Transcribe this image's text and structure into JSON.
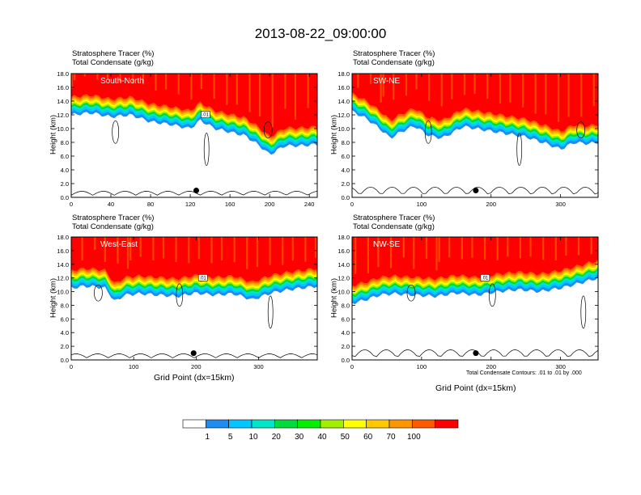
{
  "figure": {
    "title": "2013-08-22_09:00:00",
    "note": "Total Condensate Contours: .01 to .01 by .000",
    "xlabel": "Grid Point (dx=15km)"
  },
  "colorbar": {
    "levels": [
      "1",
      "5",
      "10",
      "20",
      "30",
      "40",
      "50",
      "60",
      "70",
      "100"
    ],
    "colors": [
      "#ffffff",
      "#1e8cf0",
      "#00c8ff",
      "#00e6c8",
      "#00dc3c",
      "#00f000",
      "#a0f000",
      "#ffff00",
      "#ffc800",
      "#ff9600",
      "#ff5a00",
      "#ff0000"
    ]
  },
  "colors": {
    "contour": "#000000",
    "marker": "#000000"
  },
  "chart_data": [
    {
      "id": "p1",
      "type": "heatmap",
      "title": "South-North",
      "line1": "Stratosphere Tracer   (%)",
      "line2": "Total Condensate   (g/kg)",
      "ylabel": "Height (km)",
      "xlabel": "",
      "xlim": [
        0,
        248
      ],
      "xticks": [
        0,
        40,
        80,
        120,
        160,
        200,
        240
      ],
      "ylim": [
        0,
        18
      ],
      "yticks": [
        0.0,
        2.0,
        4.0,
        6.0,
        8.0,
        10.0,
        12.0,
        14.0,
        16.0,
        18.0
      ],
      "tropopause_km": [
        [
          0,
          14.6
        ],
        [
          20,
          14.9
        ],
        [
          40,
          14.3
        ],
        [
          60,
          14.6
        ],
        [
          80,
          13.6
        ],
        [
          100,
          13.2
        ],
        [
          120,
          12.6
        ],
        [
          130,
          13.8
        ],
        [
          145,
          12.6
        ],
        [
          160,
          12.1
        ],
        [
          175,
          11.6
        ],
        [
          190,
          10.1
        ],
        [
          200,
          8.8
        ],
        [
          215,
          10.1
        ],
        [
          230,
          10.1
        ],
        [
          248,
          10.3
        ]
      ],
      "marker": [
        126,
        1.0
      ],
      "contour_label": ".01"
    },
    {
      "id": "p2",
      "type": "heatmap",
      "title": "SW-NE",
      "line1": "Stratosphere Tracer   (%)",
      "line2": "Total Condensate   (g/kg)",
      "ylabel": "Height (km)",
      "xlabel": "",
      "xlim": [
        0,
        354
      ],
      "xticks": [
        0,
        100,
        200,
        300
      ],
      "ylim": [
        0,
        18
      ],
      "yticks": [
        0.0,
        2.0,
        4.0,
        6.0,
        8.0,
        10.0,
        12.0,
        14.0,
        16.0,
        18.0
      ],
      "tropopause_km": [
        [
          0,
          15.1
        ],
        [
          20,
          14.1
        ],
        [
          40,
          12.6
        ],
        [
          55,
          11.2
        ],
        [
          70,
          12.1
        ],
        [
          90,
          13.0
        ],
        [
          110,
          11.6
        ],
        [
          130,
          11.2
        ],
        [
          160,
          12.9
        ],
        [
          190,
          12.4
        ],
        [
          220,
          11.9
        ],
        [
          250,
          11.4
        ],
        [
          280,
          10.4
        ],
        [
          300,
          9.6
        ],
        [
          320,
          10.6
        ],
        [
          340,
          10.4
        ],
        [
          354,
          10.6
        ]
      ],
      "marker": [
        178,
        1.0
      ],
      "contour_label": ""
    },
    {
      "id": "p3",
      "type": "heatmap",
      "title": "West-East",
      "line1": "Stratosphere Tracer   (%)",
      "line2": "Total Condensate   (g/kg)",
      "ylabel": "Height (km)",
      "xlabel": "Grid Point (dx=15km)",
      "xlim": [
        0,
        394
      ],
      "xticks": [
        0,
        100,
        200,
        300
      ],
      "ylim": [
        0,
        18
      ],
      "yticks": [
        0.0,
        2.0,
        4.0,
        6.0,
        8.0,
        10.0,
        12.0,
        14.0,
        16.0,
        18.0
      ],
      "tropopause_km": [
        [
          0,
          13.1
        ],
        [
          20,
          13.4
        ],
        [
          40,
          13.3
        ],
        [
          55,
          13.1
        ],
        [
          70,
          11.1
        ],
        [
          85,
          12.1
        ],
        [
          110,
          12.3
        ],
        [
          140,
          12.1
        ],
        [
          170,
          11.9
        ],
        [
          200,
          12.4
        ],
        [
          230,
          12.1
        ],
        [
          260,
          12.3
        ],
        [
          290,
          11.4
        ],
        [
          320,
          12.4
        ],
        [
          350,
          12.9
        ],
        [
          394,
          13.4
        ]
      ],
      "marker": [
        196,
        1.0
      ],
      "contour_label": ".01"
    },
    {
      "id": "p4",
      "type": "heatmap",
      "title": "NW-SE",
      "line1": "Stratosphere Tracer   (%)",
      "line2": "Total Condensate   (g/kg)",
      "ylabel": "Height (km)",
      "xlabel": "Grid Point (dx=15km)",
      "xlim": [
        0,
        354
      ],
      "xticks": [
        0,
        100,
        200,
        300
      ],
      "ylim": [
        0,
        18
      ],
      "yticks": [
        0.0,
        2.0,
        4.0,
        6.0,
        8.0,
        10.0,
        12.0,
        14.0,
        16.0,
        18.0
      ],
      "tropopause_km": [
        [
          0,
          10.9
        ],
        [
          20,
          11.4
        ],
        [
          40,
          12.1
        ],
        [
          60,
          12.3
        ],
        [
          90,
          12.1
        ],
        [
          120,
          11.9
        ],
        [
          150,
          12.4
        ],
        [
          180,
          12.1
        ],
        [
          210,
          12.6
        ],
        [
          240,
          12.9
        ],
        [
          270,
          12.6
        ],
        [
          300,
          13.1
        ],
        [
          330,
          13.9
        ],
        [
          354,
          14.6
        ]
      ],
      "marker": [
        178,
        1.0
      ],
      "contour_label": ".01"
    }
  ]
}
